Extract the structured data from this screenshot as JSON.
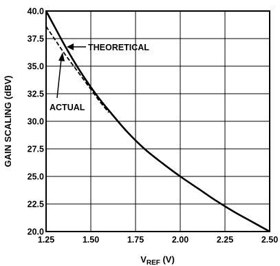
{
  "chart_data": {
    "type": "line",
    "xlabel_main": "V",
    "xlabel_sub": "REF",
    "xlabel_unit": " (V)",
    "ylabel": "GAIN SCALING (dBV)",
    "xlim": [
      1.25,
      2.5
    ],
    "ylim": [
      20.0,
      40.0
    ],
    "x_ticks": [
      "1.25",
      "1.50",
      "1.75",
      "2.00",
      "2.25",
      "2.50"
    ],
    "y_ticks": [
      "20.0",
      "22.5",
      "25.0",
      "27.5",
      "30.0",
      "32.5",
      "35.0",
      "37.5",
      "40.0"
    ],
    "grid": true,
    "series": [
      {
        "name": "ACTUAL",
        "style": "solid",
        "color": "#000000",
        "x": [
          1.25,
          1.3,
          1.35,
          1.4,
          1.45,
          1.5,
          1.55,
          1.6,
          1.7,
          1.8,
          1.9,
          2.0,
          2.1,
          2.2,
          2.3,
          2.4,
          2.5
        ],
        "y": [
          40.0,
          38.5,
          37.0,
          35.6,
          34.3,
          33.1,
          32.0,
          31.0,
          29.1,
          27.5,
          26.2,
          25.0,
          23.9,
          22.8,
          21.8,
          20.9,
          20.0
        ]
      },
      {
        "name": "THEORETICAL",
        "style": "dashed",
        "color": "#000000",
        "x": [
          1.25,
          1.3,
          1.35,
          1.4,
          1.45,
          1.5,
          1.55,
          1.6
        ],
        "y": [
          38.6,
          37.4,
          36.2,
          35.1,
          34.0,
          32.9,
          31.8,
          30.8
        ]
      }
    ],
    "annotations": [
      {
        "text": "THEORETICAL",
        "target": [
          1.365,
          36.2
        ]
      },
      {
        "text": "ACTUAL",
        "target": [
          1.34,
          37.0
        ]
      }
    ]
  }
}
